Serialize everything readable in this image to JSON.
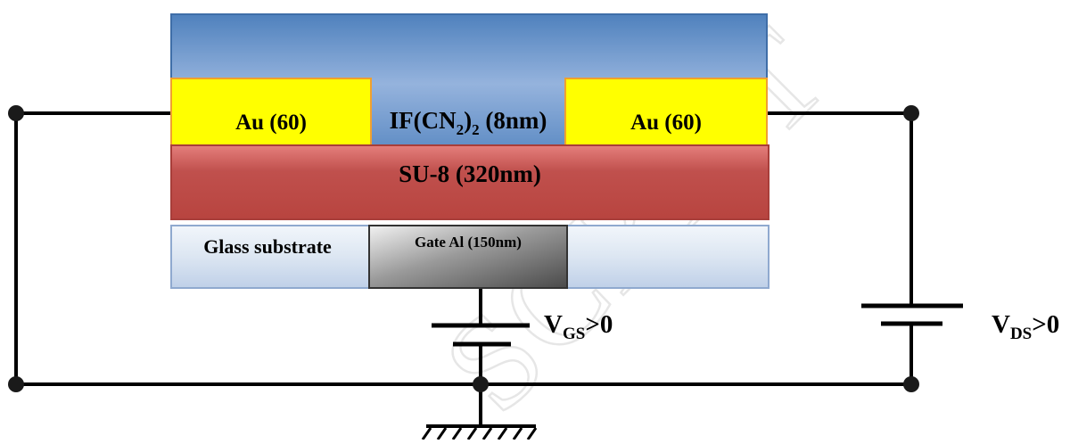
{
  "watermark": "SCRIPT",
  "layers": {
    "semiconductor": {
      "base": "IF(CN",
      "sub1": "2",
      "mid": ")",
      "sub2": "2",
      "tail": " (8nm)"
    },
    "source": "Au (60)",
    "drain": "Au (60)",
    "dielectric": "SU-8 (320nm)",
    "substrate": "Glass substrate",
    "gate": "Gate Al (150nm)"
  },
  "sources": {
    "gate_source": {
      "main": "V",
      "sub": "GS",
      "tail": ">0"
    },
    "drain_source": {
      "main": "V",
      "sub": "DS",
      "tail": ">0"
    }
  },
  "colors": {
    "semiconductor": "#6f97cd",
    "gold": "#ffff00",
    "dielectric": "#c0504d",
    "substrate": "#dbe5f1",
    "wire": "#000000"
  }
}
